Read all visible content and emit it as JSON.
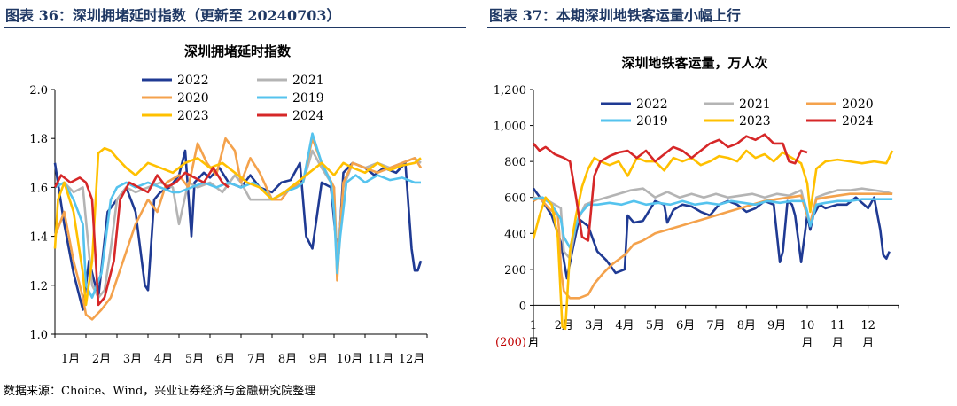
{
  "left_header": "图表 36：深圳拥堵延时指数（更新至 20240703）",
  "right_header": "图表 37：本期深圳地铁客运量小幅上行",
  "footer": "数据来源：Choice、Wind，兴业证券经济与金融研究院整理",
  "colors": {
    "2022": "#1f3a93",
    "2021": "#b4b4b4",
    "2020": "#f4a24c",
    "2019": "#55c3ee",
    "2023": "#ffc000",
    "2024": "#d62728",
    "header": "#1f3864"
  },
  "chart_data": [
    {
      "type": "line",
      "title": "深圳拥堵延时指数",
      "xlabel": "",
      "ylabel": "",
      "ylim": [
        1.0,
        2.0
      ],
      "y_ticks": [
        "1.0",
        "1.2",
        "1.4",
        "1.6",
        "1.8",
        "2.0"
      ],
      "x_range": [
        1,
        13
      ],
      "x_ticks": [
        "1月",
        "2月",
        "3月",
        "4月",
        "5月",
        "6月",
        "7月",
        "8月",
        "9月",
        "10月",
        "11月",
        "12月"
      ],
      "legend": [
        "2022",
        "2021",
        "2020",
        "2019",
        "2023",
        "2024"
      ],
      "series": [
        {
          "name": "2022",
          "x": [
            1,
            1.3,
            1.6,
            1.9,
            2.1,
            2.4,
            2.7,
            3.0,
            3.3,
            3.6,
            3.9,
            4.0,
            4.2,
            4.4,
            4.7,
            5.0,
            5.2,
            5.4,
            5.5,
            5.8,
            6.0,
            6.3,
            6.6,
            7.0,
            7.3,
            7.6,
            8.0,
            8.3,
            8.6,
            8.9,
            9.1,
            9.3,
            9.6,
            9.9,
            10.05,
            10.15,
            10.3,
            10.6,
            11.0,
            11.3,
            11.6,
            12.0,
            12.3,
            12.5,
            12.6,
            12.7,
            12.8
          ],
          "values": [
            1.7,
            1.45,
            1.25,
            1.1,
            1.3,
            1.15,
            1.5,
            1.55,
            1.6,
            1.5,
            1.2,
            1.18,
            1.55,
            1.58,
            1.6,
            1.65,
            1.75,
            1.4,
            1.62,
            1.66,
            1.64,
            1.68,
            1.62,
            1.6,
            1.65,
            1.6,
            1.58,
            1.62,
            1.63,
            1.7,
            1.4,
            1.35,
            1.62,
            1.6,
            1.4,
            1.35,
            1.66,
            1.7,
            1.68,
            1.65,
            1.68,
            1.66,
            1.7,
            1.35,
            1.26,
            1.26,
            1.3
          ]
        },
        {
          "name": "2021",
          "x": [
            1,
            1.3,
            1.6,
            1.9,
            2.2,
            2.4,
            2.6,
            2.8,
            3.0,
            3.3,
            3.6,
            4.0,
            4.4,
            4.8,
            5.0,
            5.3,
            5.6,
            6.0,
            6.4,
            6.8,
            7.0,
            7.3,
            7.7,
            8.0,
            8.3,
            8.7,
            9.0,
            9.3,
            9.6,
            10.0,
            10.1,
            10.3,
            10.6,
            11.0,
            11.4,
            11.8,
            12.2,
            12.6,
            12.8
          ],
          "values": [
            1.6,
            1.62,
            1.58,
            1.6,
            1.2,
            1.15,
            1.18,
            1.35,
            1.55,
            1.6,
            1.58,
            1.6,
            1.62,
            1.6,
            1.45,
            1.62,
            1.6,
            1.62,
            1.58,
            1.65,
            1.62,
            1.55,
            1.55,
            1.55,
            1.57,
            1.6,
            1.62,
            1.75,
            1.68,
            1.6,
            1.3,
            1.6,
            1.7,
            1.68,
            1.7,
            1.68,
            1.7,
            1.72,
            1.7
          ]
        },
        {
          "name": "2020",
          "x": [
            1,
            1.3,
            1.6,
            1.9,
            2.0,
            2.2,
            2.5,
            2.8,
            3.2,
            3.6,
            4.0,
            4.3,
            4.6,
            5.0,
            5.3,
            5.6,
            5.9,
            6.2,
            6.5,
            6.8,
            7.0,
            7.3,
            7.6,
            8.0,
            8.3,
            8.6,
            9.0,
            9.3,
            9.6,
            10.0,
            10.1,
            10.3,
            10.6,
            11.0,
            11.4,
            11.8,
            12.2,
            12.6,
            12.8
          ],
          "values": [
            1.4,
            1.5,
            1.3,
            1.15,
            1.08,
            1.06,
            1.1,
            1.15,
            1.3,
            1.45,
            1.55,
            1.5,
            1.62,
            1.65,
            1.6,
            1.78,
            1.7,
            1.65,
            1.8,
            1.75,
            1.62,
            1.72,
            1.66,
            1.55,
            1.55,
            1.6,
            1.62,
            1.8,
            1.7,
            1.6,
            1.22,
            1.62,
            1.7,
            1.68,
            1.66,
            1.68,
            1.7,
            1.72,
            1.68
          ]
        },
        {
          "name": "2019",
          "x": [
            1,
            1.3,
            1.6,
            1.9,
            2.0,
            2.2,
            2.5,
            2.8,
            3.0,
            3.3,
            3.6,
            4.0,
            4.4,
            4.8,
            5.0,
            5.4,
            5.8,
            6.2,
            6.6,
            7.0,
            7.4,
            7.8,
            8.0,
            8.4,
            8.8,
            9.0,
            9.3,
            9.6,
            9.9,
            10.0,
            10.1,
            10.2,
            10.4,
            10.7,
            11.0,
            11.4,
            11.8,
            12.2,
            12.6,
            12.8
          ],
          "values": [
            1.6,
            1.62,
            1.55,
            1.45,
            1.2,
            1.15,
            1.25,
            1.55,
            1.6,
            1.62,
            1.6,
            1.62,
            1.6,
            1.58,
            1.58,
            1.6,
            1.62,
            1.6,
            1.62,
            1.6,
            1.62,
            1.58,
            1.55,
            1.58,
            1.6,
            1.62,
            1.82,
            1.7,
            1.62,
            1.5,
            1.25,
            1.4,
            1.62,
            1.65,
            1.62,
            1.65,
            1.63,
            1.64,
            1.62,
            1.62
          ]
        },
        {
          "name": "2023",
          "x": [
            1,
            1.1,
            1.3,
            1.6,
            1.9,
            2.0,
            2.2,
            2.4,
            2.6,
            2.8,
            3.0,
            3.3,
            3.6,
            4.0,
            4.4,
            4.8,
            5.2,
            5.6,
            6.0,
            6.4,
            6.8,
            7.2,
            7.6,
            8.0,
            8.4,
            8.8,
            9.2,
            9.6,
            10.0,
            10.3,
            10.6,
            11.0,
            11.4,
            11.8,
            12.2,
            12.6,
            12.8
          ],
          "values": [
            1.35,
            1.55,
            1.62,
            1.5,
            1.25,
            1.12,
            1.3,
            1.74,
            1.76,
            1.75,
            1.72,
            1.68,
            1.65,
            1.7,
            1.68,
            1.66,
            1.7,
            1.72,
            1.68,
            1.7,
            1.66,
            1.62,
            1.6,
            1.55,
            1.58,
            1.62,
            1.66,
            1.7,
            1.65,
            1.7,
            1.68,
            1.66,
            1.7,
            1.67,
            1.69,
            1.7,
            1.72
          ]
        },
        {
          "name": "2024",
          "x": [
            1,
            1.2,
            1.5,
            1.8,
            2.0,
            2.2,
            2.4,
            2.6,
            2.9,
            3.1,
            3.4,
            3.7,
            4.0,
            4.3,
            4.6,
            4.9,
            5.2,
            5.5,
            5.8,
            6.1,
            6.4,
            6.6
          ],
          "values": [
            1.6,
            1.65,
            1.62,
            1.64,
            1.62,
            1.55,
            1.12,
            1.15,
            1.3,
            1.55,
            1.62,
            1.6,
            1.58,
            1.65,
            1.6,
            1.62,
            1.66,
            1.64,
            1.62,
            1.68,
            1.62,
            1.6
          ]
        }
      ]
    },
    {
      "type": "line",
      "title": "深圳地铁客运量，万人次",
      "xlabel": "",
      "ylabel": "",
      "ylim": [
        -200,
        1200
      ],
      "y_ticks": [
        "(200)",
        "0",
        "200",
        "400",
        "600",
        "800",
        "1,000",
        "1,200"
      ],
      "x_range": [
        1,
        13
      ],
      "x_ticks": [
        [
          "1",
          "月"
        ],
        [
          "2月"
        ],
        [
          "3月"
        ],
        [
          "4月"
        ],
        [
          "5月"
        ],
        [
          "6月"
        ],
        [
          "7月"
        ],
        [
          "8月"
        ],
        [
          "9月"
        ],
        [
          "10",
          "月"
        ],
        [
          "11",
          "月"
        ],
        [
          "12",
          "月"
        ]
      ],
      "legend": [
        "2022",
        "2021",
        "2020",
        "2019",
        "2023",
        "2024"
      ],
      "series": [
        {
          "name": "2022",
          "x": [
            1,
            1.3,
            1.6,
            1.9,
            2.1,
            2.3,
            2.5,
            2.8,
            3.1,
            3.4,
            3.7,
            4.0,
            4.1,
            4.3,
            4.6,
            5.0,
            5.3,
            5.4,
            5.6,
            5.9,
            6.2,
            6.5,
            6.8,
            7.1,
            7.4,
            7.7,
            8.0,
            8.3,
            8.6,
            8.9,
            9.1,
            9.2,
            9.35,
            9.5,
            9.6,
            9.8,
            10.0,
            10.1,
            10.2,
            10.4,
            10.6,
            11.0,
            11.3,
            11.6,
            12.0,
            12.2,
            12.4,
            12.5,
            12.6,
            12.7
          ],
          "values": [
            650,
            580,
            500,
            350,
            150,
            320,
            480,
            440,
            300,
            250,
            180,
            200,
            500,
            460,
            470,
            580,
            560,
            460,
            530,
            560,
            550,
            520,
            500,
            560,
            580,
            560,
            520,
            540,
            580,
            560,
            240,
            300,
            580,
            560,
            500,
            240,
            500,
            420,
            500,
            560,
            540,
            560,
            560,
            600,
            540,
            600,
            420,
            280,
            260,
            300
          ]
        },
        {
          "name": "2021",
          "x": [
            1,
            1.5,
            1.9,
            2.0,
            2.2,
            2.4,
            2.7,
            3.0,
            3.4,
            3.8,
            4.2,
            4.6,
            5.0,
            5.4,
            5.8,
            6.2,
            6.6,
            7.0,
            7.4,
            7.8,
            8.2,
            8.6,
            9.0,
            9.4,
            9.8,
            10.0,
            10.1,
            10.3,
            10.6,
            11.0,
            11.4,
            11.8,
            12.2,
            12.6,
            12.8
          ],
          "values": [
            600,
            580,
            540,
            300,
            260,
            450,
            560,
            580,
            600,
            620,
            640,
            650,
            600,
            630,
            600,
            620,
            600,
            620,
            600,
            610,
            620,
            600,
            620,
            610,
            640,
            500,
            450,
            600,
            620,
            640,
            640,
            650,
            640,
            630,
            620
          ]
        },
        {
          "name": "2020",
          "x": [
            1,
            1.2,
            1.5,
            1.8,
            1.85,
            1.9,
            2.0,
            2.2,
            2.5,
            2.8,
            3.0,
            3.3,
            3.6,
            4.0,
            4.3,
            4.6,
            5.0,
            5.4,
            5.8,
            6.2,
            6.6,
            7.0,
            7.4,
            7.8,
            8.2,
            8.6,
            9.0,
            9.4,
            9.8,
            10.0,
            10.1,
            10.3,
            10.6,
            11.0,
            11.4,
            11.8,
            12.2,
            12.6,
            12.8
          ],
          "values": [
            580,
            600,
            540,
            500,
            400,
            200,
            80,
            40,
            40,
            60,
            120,
            180,
            230,
            280,
            340,
            360,
            400,
            420,
            440,
            460,
            480,
            500,
            520,
            540,
            560,
            580,
            590,
            600,
            610,
            500,
            460,
            590,
            600,
            610,
            620,
            620,
            620,
            620,
            620
          ]
        },
        {
          "name": "2019",
          "x": [
            1,
            1.3,
            1.6,
            1.9,
            2.0,
            2.2,
            2.5,
            2.8,
            3.1,
            3.5,
            3.9,
            4.3,
            4.7,
            5.1,
            5.5,
            5.9,
            6.3,
            6.7,
            7.1,
            7.5,
            7.9,
            8.3,
            8.7,
            9.1,
            9.5,
            9.9,
            10.0,
            10.1,
            10.3,
            10.6,
            11.0,
            11.4,
            11.8,
            12.2,
            12.6,
            12.8
          ],
          "values": [
            590,
            600,
            560,
            480,
            380,
            320,
            500,
            560,
            560,
            570,
            560,
            580,
            560,
            570,
            560,
            580,
            560,
            570,
            560,
            580,
            570,
            560,
            580,
            570,
            580,
            580,
            520,
            440,
            560,
            570,
            580,
            580,
            590,
            590,
            590,
            590
          ]
        },
        {
          "name": "2023",
          "x": [
            1,
            1.2,
            1.4,
            1.6,
            1.8,
            1.95,
            2.05,
            2.2,
            2.4,
            2.6,
            2.8,
            3.0,
            3.2,
            3.5,
            3.8,
            4.1,
            4.4,
            4.7,
            5.0,
            5.3,
            5.6,
            5.9,
            6.2,
            6.5,
            6.8,
            7.1,
            7.4,
            7.7,
            8.0,
            8.3,
            8.6,
            8.9,
            9.2,
            9.5,
            9.8,
            10.0,
            10.1,
            10.3,
            10.6,
            11.0,
            11.4,
            11.8,
            12.2,
            12.6,
            12.8
          ],
          "values": [
            370,
            500,
            600,
            560,
            380,
            -120,
            -130,
            300,
            500,
            660,
            760,
            820,
            800,
            780,
            800,
            720,
            820,
            800,
            800,
            750,
            820,
            800,
            820,
            780,
            800,
            830,
            820,
            800,
            860,
            820,
            840,
            800,
            850,
            820,
            790,
            680,
            520,
            760,
            800,
            810,
            800,
            790,
            800,
            790,
            860
          ]
        },
        {
          "name": "2024",
          "x": [
            1,
            1.2,
            1.4,
            1.7,
            2.0,
            2.2,
            2.4,
            2.6,
            2.8,
            3.0,
            3.2,
            3.5,
            3.8,
            4.1,
            4.4,
            4.7,
            5.0,
            5.3,
            5.6,
            5.9,
            6.2,
            6.5,
            6.8,
            7.1,
            7.4,
            7.7,
            8.0,
            8.3,
            8.6,
            8.9,
            9.2,
            9.4,
            9.6,
            9.8,
            10.0
          ],
          "values": [
            900,
            860,
            880,
            840,
            820,
            800,
            600,
            380,
            360,
            720,
            800,
            830,
            850,
            860,
            820,
            860,
            800,
            840,
            880,
            860,
            820,
            860,
            900,
            920,
            880,
            900,
            940,
            920,
            950,
            900,
            900,
            800,
            790,
            860,
            850
          ]
        }
      ]
    }
  ]
}
